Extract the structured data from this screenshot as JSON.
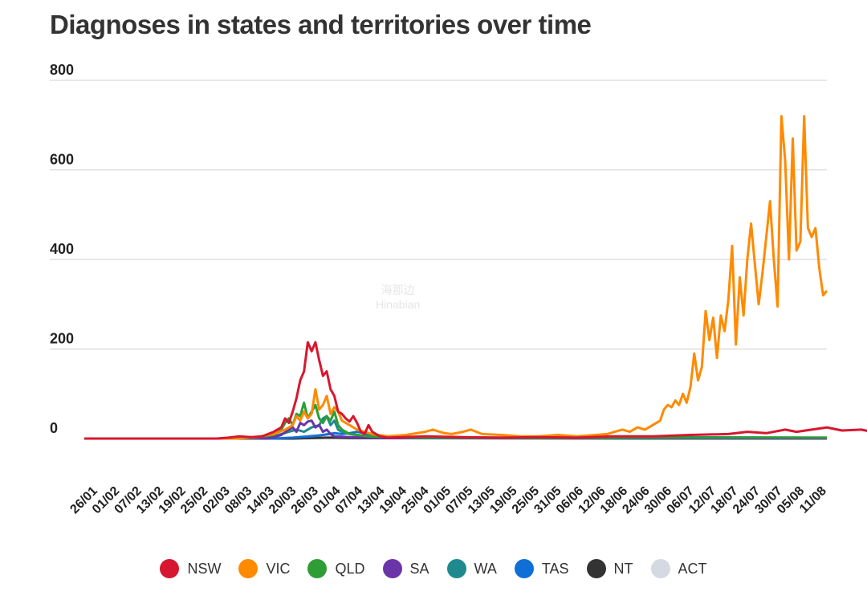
{
  "chart_data": {
    "type": "line",
    "title": "Diagnoses in states and territories over time",
    "xlabel": "",
    "ylabel": "",
    "ylim": [
      0,
      800
    ],
    "yticks": [
      0,
      200,
      400,
      600,
      800
    ],
    "grid": true,
    "legend_position": "bottom",
    "tick_labels": [
      "26/01",
      "01/02",
      "07/02",
      "13/02",
      "19/02",
      "25/02",
      "02/03",
      "08/03",
      "14/03",
      "20/03",
      "26/03",
      "01/04",
      "07/04",
      "13/04",
      "19/04",
      "25/04",
      "01/05",
      "07/05",
      "13/05",
      "19/05",
      "25/05",
      "31/05",
      "06/06",
      "12/06",
      "18/06",
      "24/06",
      "30/06",
      "06/07",
      "12/07",
      "18/07",
      "24/07",
      "30/07",
      "05/08",
      "11/08"
    ],
    "series": [
      {
        "name": "NSW",
        "color": "#d7172f",
        "points": [
          [
            0,
            0
          ],
          [
            35,
            0
          ],
          [
            38,
            2
          ],
          [
            41,
            5
          ],
          [
            44,
            3
          ],
          [
            47,
            5
          ],
          [
            50,
            15
          ],
          [
            52,
            25
          ],
          [
            53,
            45
          ],
          [
            54,
            35
          ],
          [
            55,
            60
          ],
          [
            56,
            90
          ],
          [
            57,
            130
          ],
          [
            58,
            150
          ],
          [
            59,
            215
          ],
          [
            60,
            195
          ],
          [
            61,
            215
          ],
          [
            62,
            175
          ],
          [
            63,
            140
          ],
          [
            64,
            150
          ],
          [
            65,
            110
          ],
          [
            66,
            95
          ],
          [
            67,
            60
          ],
          [
            68,
            55
          ],
          [
            69,
            45
          ],
          [
            70,
            38
          ],
          [
            71,
            50
          ],
          [
            72,
            35
          ],
          [
            73,
            15
          ],
          [
            74,
            10
          ],
          [
            75,
            30
          ],
          [
            76,
            15
          ],
          [
            77,
            10
          ],
          [
            78,
            5
          ],
          [
            80,
            2
          ],
          [
            90,
            5
          ],
          [
            100,
            3
          ],
          [
            110,
            2
          ],
          [
            120,
            3
          ],
          [
            130,
            2
          ],
          [
            140,
            5
          ],
          [
            150,
            5
          ],
          [
            160,
            8
          ],
          [
            170,
            10
          ],
          [
            175,
            15
          ],
          [
            180,
            12
          ],
          [
            185,
            20
          ],
          [
            188,
            15
          ],
          [
            192,
            20
          ],
          [
            196,
            25
          ],
          [
            200,
            18
          ],
          [
            205,
            20
          ],
          [
            208,
            15
          ],
          [
            210,
            22
          ]
        ]
      },
      {
        "name": "VIC",
        "color": "#ff8a00",
        "points": [
          [
            0,
            0
          ],
          [
            40,
            0
          ],
          [
            45,
            3
          ],
          [
            50,
            10
          ],
          [
            53,
            20
          ],
          [
            55,
            30
          ],
          [
            56,
            50
          ],
          [
            57,
            40
          ],
          [
            58,
            60
          ],
          [
            59,
            45
          ],
          [
            60,
            55
          ],
          [
            61,
            110
          ],
          [
            62,
            65
          ],
          [
            63,
            75
          ],
          [
            64,
            95
          ],
          [
            65,
            55
          ],
          [
            66,
            70
          ],
          [
            67,
            60
          ],
          [
            68,
            40
          ],
          [
            69,
            35
          ],
          [
            70,
            30
          ],
          [
            71,
            25
          ],
          [
            72,
            20
          ],
          [
            74,
            15
          ],
          [
            76,
            10
          ],
          [
            80,
            5
          ],
          [
            85,
            8
          ],
          [
            90,
            15
          ],
          [
            92,
            20
          ],
          [
            95,
            12
          ],
          [
            97,
            10
          ],
          [
            100,
            15
          ],
          [
            102,
            20
          ],
          [
            105,
            10
          ],
          [
            110,
            8
          ],
          [
            115,
            5
          ],
          [
            120,
            5
          ],
          [
            125,
            8
          ],
          [
            130,
            5
          ],
          [
            135,
            8
          ],
          [
            138,
            10
          ],
          [
            140,
            15
          ],
          [
            142,
            20
          ],
          [
            144,
            15
          ],
          [
            146,
            25
          ],
          [
            148,
            20
          ],
          [
            150,
            30
          ],
          [
            152,
            40
          ],
          [
            153,
            65
          ],
          [
            154,
            75
          ],
          [
            155,
            70
          ],
          [
            156,
            85
          ],
          [
            157,
            75
          ],
          [
            158,
            100
          ],
          [
            159,
            80
          ],
          [
            160,
            115
          ],
          [
            161,
            190
          ],
          [
            162,
            130
          ],
          [
            163,
            160
          ],
          [
            164,
            285
          ],
          [
            165,
            220
          ],
          [
            166,
            270
          ],
          [
            167,
            180
          ],
          [
            168,
            275
          ],
          [
            169,
            240
          ],
          [
            170,
            310
          ],
          [
            171,
            430
          ],
          [
            172,
            210
          ],
          [
            173,
            360
          ],
          [
            174,
            275
          ],
          [
            175,
            400
          ],
          [
            176,
            480
          ],
          [
            177,
            390
          ],
          [
            178,
            300
          ],
          [
            179,
            370
          ],
          [
            180,
            450
          ],
          [
            181,
            530
          ],
          [
            182,
            400
          ],
          [
            183,
            295
          ],
          [
            184,
            720
          ],
          [
            185,
            620
          ],
          [
            186,
            400
          ],
          [
            187,
            670
          ],
          [
            188,
            420
          ],
          [
            189,
            440
          ],
          [
            190,
            720
          ],
          [
            191,
            470
          ],
          [
            192,
            450
          ],
          [
            193,
            470
          ],
          [
            194,
            380
          ],
          [
            195,
            320
          ],
          [
            196,
            330
          ]
        ]
      },
      {
        "name": "QLD",
        "color": "#2e9d35",
        "points": [
          [
            0,
            0
          ],
          [
            40,
            0
          ],
          [
            45,
            2
          ],
          [
            50,
            8
          ],
          [
            52,
            20
          ],
          [
            53,
            35
          ],
          [
            54,
            45
          ],
          [
            55,
            30
          ],
          [
            56,
            55
          ],
          [
            57,
            50
          ],
          [
            58,
            80
          ],
          [
            59,
            45
          ],
          [
            60,
            60
          ],
          [
            61,
            75
          ],
          [
            62,
            45
          ],
          [
            63,
            35
          ],
          [
            64,
            50
          ],
          [
            65,
            40
          ],
          [
            66,
            60
          ],
          [
            67,
            30
          ],
          [
            68,
            20
          ],
          [
            69,
            15
          ],
          [
            70,
            10
          ],
          [
            75,
            5
          ],
          [
            80,
            3
          ],
          [
            90,
            2
          ],
          [
            120,
            1
          ],
          [
            160,
            2
          ],
          [
            196,
            2
          ]
        ]
      },
      {
        "name": "SA",
        "color": "#6a35a8",
        "points": [
          [
            0,
            0
          ],
          [
            48,
            0
          ],
          [
            50,
            3
          ],
          [
            52,
            8
          ],
          [
            54,
            20
          ],
          [
            55,
            25
          ],
          [
            56,
            15
          ],
          [
            57,
            35
          ],
          [
            58,
            30
          ],
          [
            59,
            38
          ],
          [
            60,
            40
          ],
          [
            61,
            25
          ],
          [
            62,
            30
          ],
          [
            63,
            15
          ],
          [
            64,
            20
          ],
          [
            65,
            10
          ],
          [
            66,
            5
          ],
          [
            70,
            3
          ],
          [
            80,
            1
          ],
          [
            196,
            0
          ]
        ]
      },
      {
        "name": "WA",
        "color": "#1e8a8e",
        "points": [
          [
            0,
            0
          ],
          [
            48,
            0
          ],
          [
            50,
            5
          ],
          [
            52,
            10
          ],
          [
            54,
            15
          ],
          [
            56,
            20
          ],
          [
            58,
            15
          ],
          [
            60,
            25
          ],
          [
            62,
            30
          ],
          [
            63,
            45
          ],
          [
            64,
            50
          ],
          [
            65,
            30
          ],
          [
            66,
            40
          ],
          [
            67,
            20
          ],
          [
            68,
            15
          ],
          [
            70,
            10
          ],
          [
            75,
            5
          ],
          [
            80,
            3
          ],
          [
            100,
            2
          ],
          [
            150,
            3
          ],
          [
            196,
            2
          ]
        ]
      },
      {
        "name": "TAS",
        "color": "#0f6fd6",
        "points": [
          [
            0,
            0
          ],
          [
            50,
            0
          ],
          [
            55,
            2
          ],
          [
            60,
            5
          ],
          [
            63,
            8
          ],
          [
            66,
            12
          ],
          [
            68,
            10
          ],
          [
            70,
            12
          ],
          [
            72,
            15
          ],
          [
            74,
            12
          ],
          [
            76,
            8
          ],
          [
            78,
            5
          ],
          [
            80,
            3
          ],
          [
            90,
            1
          ],
          [
            196,
            0
          ]
        ]
      },
      {
        "name": "NT",
        "color": "#333333",
        "points": [
          [
            0,
            0
          ],
          [
            55,
            0
          ],
          [
            60,
            1
          ],
          [
            65,
            2
          ],
          [
            70,
            1
          ],
          [
            196,
            0
          ]
        ]
      },
      {
        "name": "ACT",
        "color": "#d5d9e2",
        "points": [
          [
            0,
            0
          ],
          [
            50,
            0
          ],
          [
            55,
            2
          ],
          [
            58,
            5
          ],
          [
            60,
            8
          ],
          [
            62,
            6
          ],
          [
            64,
            4
          ],
          [
            66,
            2
          ],
          [
            70,
            1
          ],
          [
            196,
            0
          ]
        ]
      }
    ]
  },
  "watermark": {
    "line1": "海那边",
    "line2": "Hinabian"
  }
}
